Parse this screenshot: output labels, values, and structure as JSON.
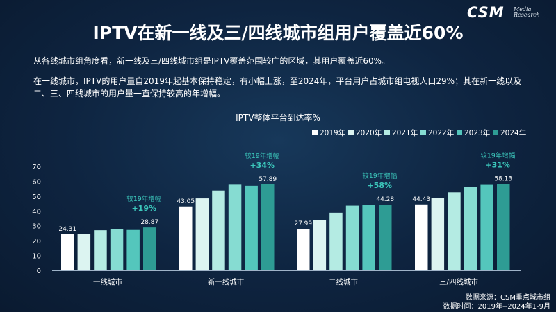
{
  "logo": {
    "text": "CSM",
    "sub": "Media\nResearch"
  },
  "header": {
    "title": "IPTV在新一线及三/四线城市组用户覆盖近60%"
  },
  "body": {
    "para1": "从各线城市组角度看，新一线及三/四线城市组是IPTV覆盖范围较广的区域，其用户覆盖近60%。",
    "para2": "在一线城市，IPTV的用户量自2019年起基本保持稳定，有小幅上涨，至2024年，平台用户占城市组电视人口29%；其在新一线以及二、三、四线城市的用户量一直保持较高的年增幅。"
  },
  "footer": {
    "source": "数据来源：CSM重点城市组",
    "time": "数据时间：2019年--2024年1-9月"
  },
  "chart_data": {
    "type": "bar",
    "title": "IPTV整体平台到达率%",
    "categories": [
      "一线城市",
      "新一线城市",
      "二线城市",
      "三/四线城市"
    ],
    "series": [
      {
        "name": "2019年",
        "color": "#ffffff",
        "values": [
          24.31,
          43.05,
          27.99,
          44.43
        ]
      },
      {
        "name": "2020年",
        "color": "#dcf4f1",
        "values": [
          24.6,
          48.5,
          33.8,
          49.0
        ]
      },
      {
        "name": "2021年",
        "color": "#b4ebe3",
        "values": [
          27.0,
          53.8,
          38.8,
          52.6
        ]
      },
      {
        "name": "2022年",
        "color": "#86dcd2",
        "values": [
          27.8,
          57.7,
          43.6,
          56.2
        ]
      },
      {
        "name": "2023年",
        "color": "#54c6bc",
        "values": [
          27.2,
          57.0,
          44.0,
          57.6
        ]
      },
      {
        "name": "2024年",
        "color": "#2e9c94",
        "values": [
          28.87,
          57.89,
          44.28,
          58.13
        ]
      }
    ],
    "data_labels": [
      {
        "first": "24.31",
        "last": "28.87"
      },
      {
        "first": "43.05",
        "last": "57.89"
      },
      {
        "first": "27.99",
        "last": "44.28"
      },
      {
        "first": "44.43",
        "last": "58.13"
      }
    ],
    "annotations": [
      {
        "label": "较19年增幅",
        "value": "+19%"
      },
      {
        "label": "较19年增幅",
        "value": "+34%"
      },
      {
        "label": "较19年增幅",
        "value": "+58%"
      },
      {
        "label": "较19年增幅",
        "value": "+31%"
      }
    ],
    "yticks": [
      "0",
      "10",
      "20",
      "30",
      "40",
      "50",
      "60",
      "70"
    ],
    "ylim": [
      0,
      70
    ],
    "legend_position": "top-right",
    "annotation_color": "#3cc8bc",
    "grid": false
  }
}
